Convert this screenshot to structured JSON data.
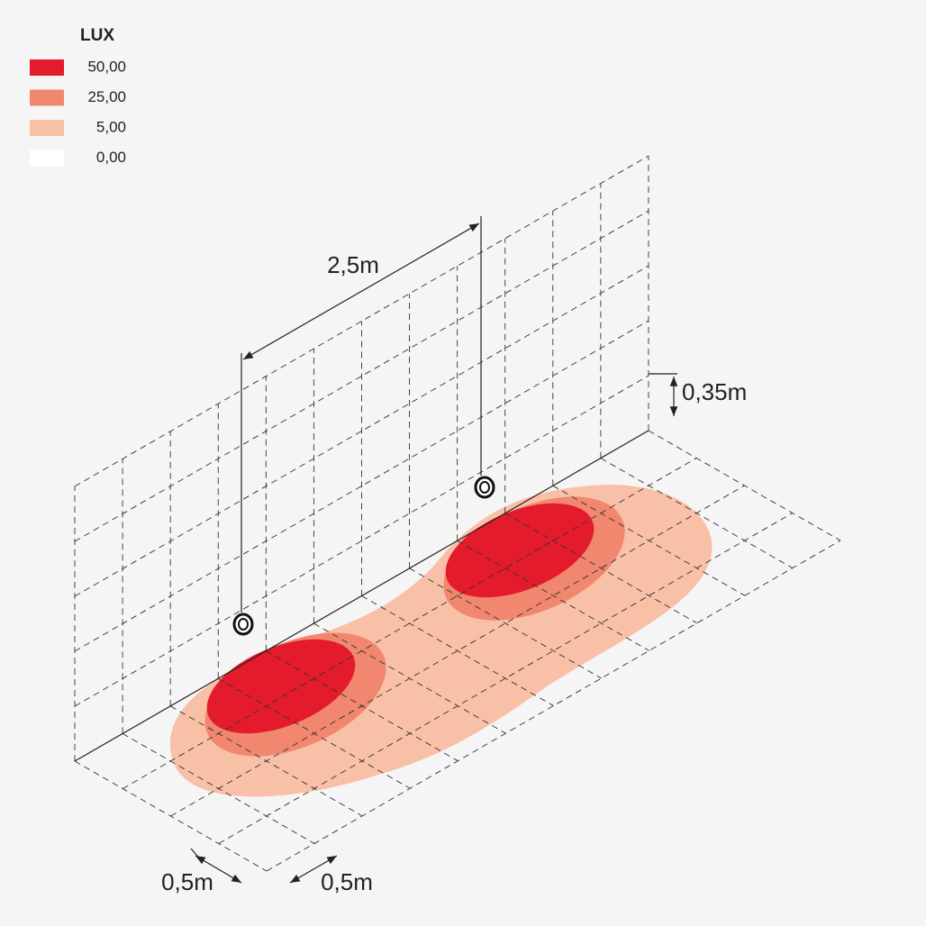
{
  "legend": {
    "title": "LUX",
    "items": [
      {
        "label": "50,00",
        "color": "#e31b2c"
      },
      {
        "label": "25,00",
        "color": "#f0876e"
      },
      {
        "label": "5,00",
        "color": "#f9c0a8"
      },
      {
        "label": "0,00",
        "color": "#ffffff"
      }
    ]
  },
  "dimensions": {
    "spacing": "2,5m",
    "height": "0,35m",
    "depth": "0,5m",
    "width": "0,5m"
  }
}
